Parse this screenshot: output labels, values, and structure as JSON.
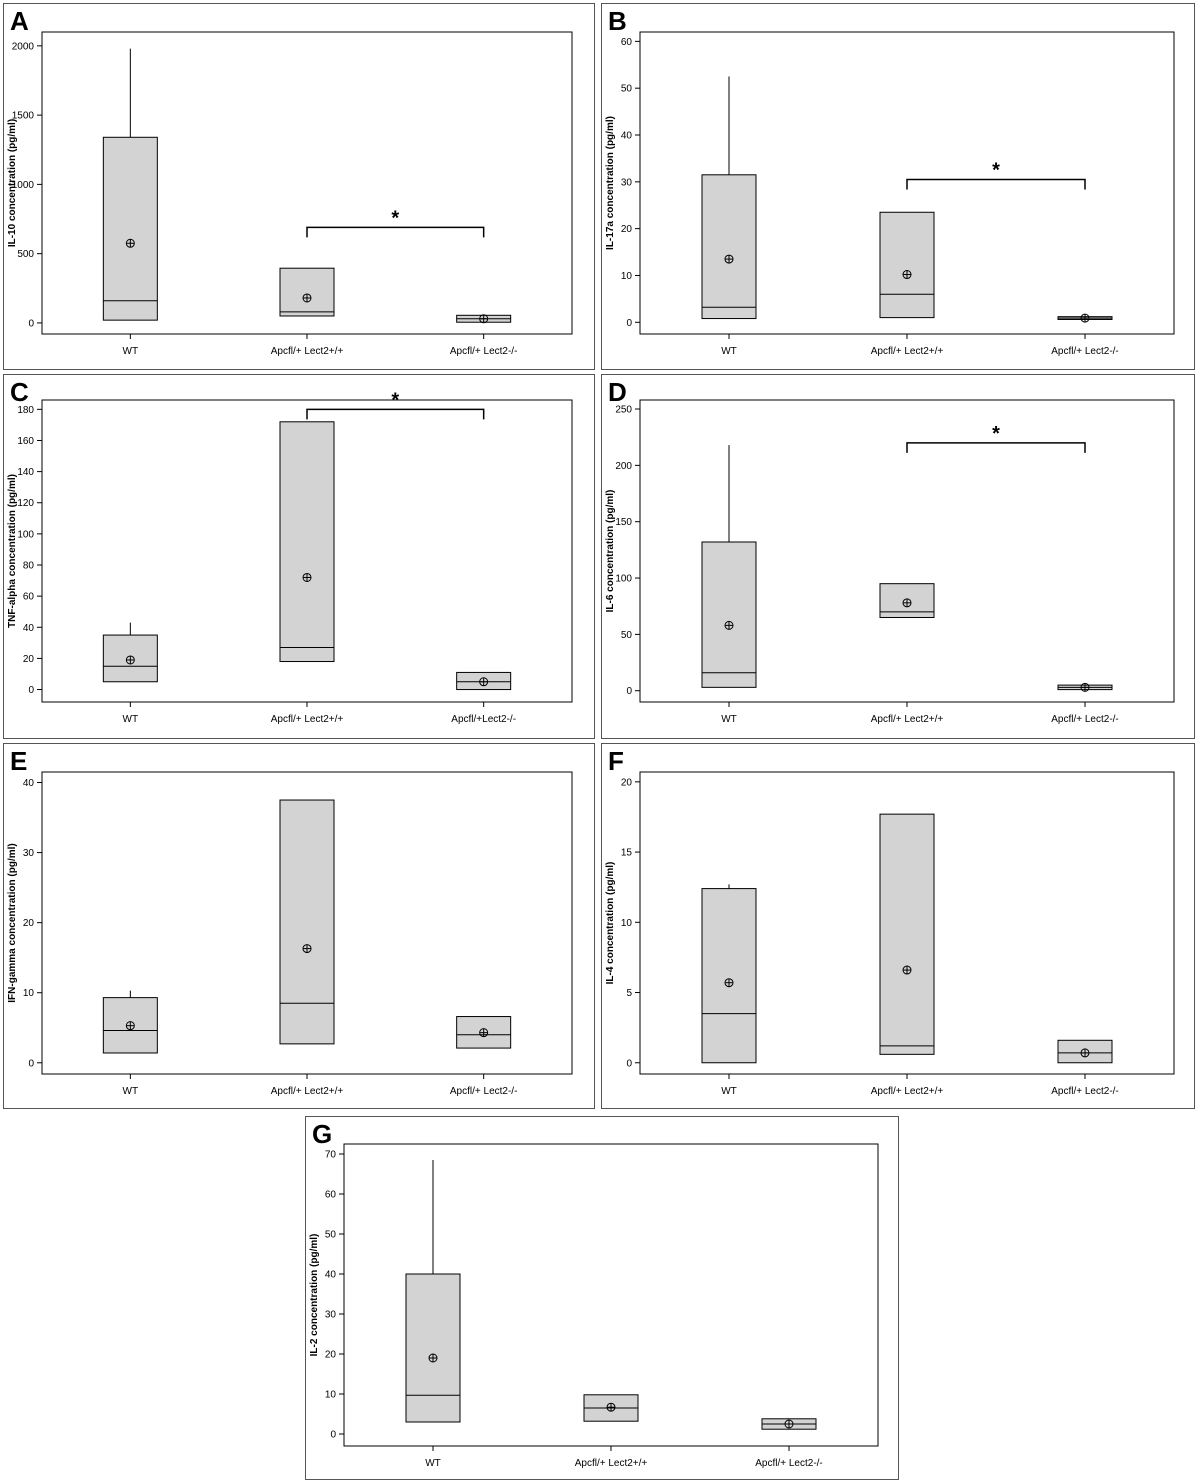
{
  "chart_data": [
    {
      "panel": "A",
      "type": "box",
      "ylabel": "IL-10 concentration (pg/ml)",
      "categories": [
        "WT",
        "Apcfl/+ Lect2+/+",
        "Apcfl/+ Lect2-/-"
      ],
      "ylim": [
        -80,
        2100
      ],
      "yticks": [
        0,
        500,
        1000,
        1500,
        2000
      ],
      "boxes": [
        {
          "q1": 20,
          "median": 160,
          "q3": 1340,
          "whisker_high": 1980,
          "mean": 575
        },
        {
          "q1": 50,
          "median": 80,
          "q3": 395,
          "mean": 180
        },
        {
          "q1": 5,
          "median": 30,
          "q3": 55,
          "mean": 30
        }
      ],
      "significance": {
        "from": 1,
        "to": 2,
        "label": "*",
        "y": 690
      }
    },
    {
      "panel": "B",
      "type": "box",
      "ylabel": "IL-17a concentration (pg/ml)",
      "categories": [
        "WT",
        "Apcfl/+ Lect2+/+",
        "Apcfl/+ Lect2-/-"
      ],
      "ylim": [
        -2.5,
        62
      ],
      "yticks": [
        0,
        10,
        20,
        30,
        40,
        50,
        60
      ],
      "boxes": [
        {
          "q1": 0.8,
          "median": 3.2,
          "q3": 31.5,
          "whisker_high": 52.5,
          "mean": 13.5
        },
        {
          "q1": 1.0,
          "median": 6.0,
          "q3": 23.5,
          "mean": 10.2
        },
        {
          "q1": 0.6,
          "median": 0.9,
          "q3": 1.2,
          "mean": 0.9
        }
      ],
      "significance": {
        "from": 1,
        "to": 2,
        "label": "*",
        "y": 30.5
      }
    },
    {
      "panel": "C",
      "type": "box",
      "ylabel": "TNF-alpha concentration (pg/ml)",
      "categories": [
        "WT",
        "Apcfl/+ Lect2+/+",
        "Apcfl/+Lect2-/-"
      ],
      "ylim": [
        -8,
        186
      ],
      "yticks": [
        0,
        20,
        40,
        60,
        80,
        100,
        120,
        140,
        160,
        180
      ],
      "boxes": [
        {
          "q1": 5,
          "median": 15,
          "q3": 35,
          "whisker_high": 43,
          "mean": 19
        },
        {
          "q1": 18,
          "median": 27,
          "q3": 172,
          "mean": 72
        },
        {
          "q1": 0,
          "median": 5,
          "q3": 11,
          "mean": 5
        }
      ],
      "significance": {
        "from": 1,
        "to": 2,
        "label": "*",
        "y": 180
      }
    },
    {
      "panel": "D",
      "type": "box",
      "ylabel": "IL-6 concentration (pg/ml)",
      "categories": [
        "WT",
        "Apcfl/+ Lect2+/+",
        "Apcfl/+ Lect2-/-"
      ],
      "ylim": [
        -10,
        258
      ],
      "yticks": [
        0,
        50,
        100,
        150,
        200,
        250
      ],
      "boxes": [
        {
          "q1": 3,
          "median": 16,
          "q3": 132,
          "whisker_high": 218,
          "mean": 58
        },
        {
          "q1": 65,
          "median": 70,
          "q3": 95,
          "mean": 78
        },
        {
          "q1": 1,
          "median": 3,
          "q3": 5,
          "mean": 3
        }
      ],
      "significance": {
        "from": 1,
        "to": 2,
        "label": "*",
        "y": 220
      }
    },
    {
      "panel": "E",
      "type": "box",
      "ylabel": "IFN-gamma concentration (pg/ml)",
      "categories": [
        "WT",
        "Apcfl/+ Lect2+/+",
        "Apcfl/+ Lect2-/-"
      ],
      "ylim": [
        -1.6,
        41.5
      ],
      "yticks": [
        0,
        10,
        20,
        30,
        40
      ],
      "boxes": [
        {
          "q1": 1.4,
          "median": 4.6,
          "q3": 9.3,
          "whisker_high": 10.3,
          "mean": 5.3
        },
        {
          "q1": 2.7,
          "median": 8.5,
          "q3": 37.5,
          "mean": 16.3
        },
        {
          "q1": 2.1,
          "median": 4.0,
          "q3": 6.6,
          "mean": 4.3
        }
      ]
    },
    {
      "panel": "F",
      "type": "box",
      "ylabel": "IL-4 concentration (pg/ml)",
      "categories": [
        "WT",
        "Apcfl/+ Lect2+/+",
        "Apcfl/+ Lect2-/-"
      ],
      "ylim": [
        -0.8,
        20.7
      ],
      "yticks": [
        0,
        5,
        10,
        15,
        20
      ],
      "boxes": [
        {
          "q1": 0,
          "median": 3.5,
          "q3": 12.4,
          "whisker_high": 12.7,
          "mean": 5.7
        },
        {
          "q1": 0.6,
          "median": 1.2,
          "q3": 17.7,
          "mean": 6.6
        },
        {
          "q1": 0,
          "median": 0.7,
          "q3": 1.6,
          "mean": 0.7
        }
      ]
    },
    {
      "panel": "G",
      "type": "box",
      "ylabel": "IL-2 concentration (pg/ml)",
      "categories": [
        "WT",
        "Apcfl/+ Lect2+/+",
        "Apcfl/+ Lect2-/-"
      ],
      "ylim": [
        -3,
        72.5
      ],
      "yticks": [
        0,
        10,
        20,
        30,
        40,
        50,
        60,
        70
      ],
      "boxes": [
        {
          "q1": 3,
          "median": 9.7,
          "q3": 40,
          "whisker_high": 68.5,
          "mean": 19
        },
        {
          "q1": 3.2,
          "median": 6.5,
          "q3": 9.8,
          "mean": 6.7
        },
        {
          "q1": 1.2,
          "median": 2.5,
          "q3": 3.8,
          "mean": 2.5
        }
      ]
    }
  ],
  "colors": {
    "box_fill": "#d3d3d3",
    "stroke": "#000000"
  }
}
